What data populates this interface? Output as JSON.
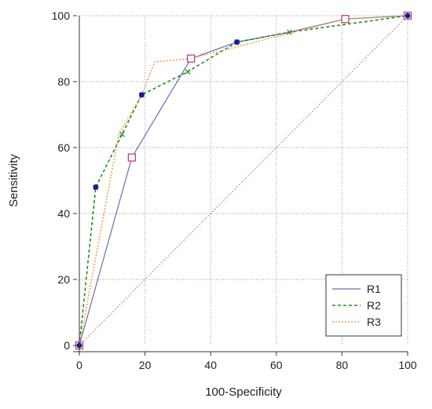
{
  "chart_data": {
    "type": "line",
    "title": "",
    "xlabel": "100-Specificity",
    "ylabel": "Sensitivity",
    "xlim": [
      0,
      100
    ],
    "ylim": [
      0,
      100
    ],
    "xticks": [
      0,
      20,
      40,
      60,
      80,
      100
    ],
    "yticks": [
      0,
      20,
      40,
      60,
      80,
      100
    ],
    "grid": true,
    "legend_position": "bottom-right",
    "reference_line": {
      "x": [
        0,
        100
      ],
      "y": [
        0,
        100
      ],
      "color": "#e07070"
    },
    "series": [
      {
        "name": "R1",
        "color": "#6a6ab8",
        "dash": "solid",
        "marker": "circle",
        "x": [
          0,
          16,
          34,
          48,
          64,
          81,
          100
        ],
        "y": [
          0,
          57,
          87,
          92,
          95,
          99,
          100
        ]
      },
      {
        "name": "R2",
        "color": "#1f8f1f",
        "dash": "dashed",
        "marker": "x",
        "x": [
          0,
          5,
          13,
          19,
          33,
          48,
          64,
          100
        ],
        "y": [
          0,
          48,
          64,
          76,
          83,
          92,
          95,
          100
        ]
      },
      {
        "name": "R3",
        "color": "#f0a050",
        "dash": "dotted",
        "marker": "square",
        "x": [
          0,
          12,
          19,
          23,
          34,
          81,
          100
        ],
        "y": [
          0,
          64,
          76,
          86,
          87,
          99,
          100
        ]
      }
    ],
    "markers": {
      "circles": {
        "color": "#1a1aa0",
        "x": [
          5,
          19,
          48,
          100,
          0
        ],
        "y": [
          48,
          76,
          92,
          100,
          0
        ]
      },
      "squares": {
        "color": "#c0407a",
        "x": [
          16,
          34,
          81,
          100,
          0
        ],
        "y": [
          57,
          87,
          99,
          100,
          0
        ]
      }
    }
  }
}
